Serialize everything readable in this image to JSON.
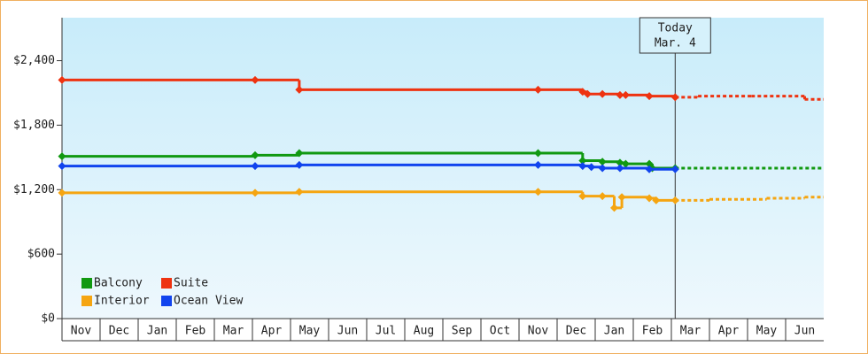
{
  "chart_data": {
    "type": "step-line",
    "categories": [
      "Nov",
      "Dec",
      "Jan",
      "Feb",
      "Mar",
      "Apr",
      "May",
      "Jun",
      "Jul",
      "Aug",
      "Sep",
      "Oct",
      "Nov",
      "Dec",
      "Jan",
      "Feb",
      "Mar",
      "Apr",
      "May",
      "Jun"
    ],
    "xlim": [
      0,
      20
    ],
    "ylim": [
      0,
      2800
    ],
    "yticks": [
      {
        "value": 0,
        "label": "$0"
      },
      {
        "value": 600,
        "label": "$600"
      },
      {
        "value": 1200,
        "label": "$1,200"
      },
      {
        "value": 1800,
        "label": "$1,800"
      },
      {
        "value": 2400,
        "label": "$2,400"
      }
    ],
    "today": {
      "x": 16.1,
      "label": [
        "Today",
        "Mar. 4"
      ]
    },
    "legend": "lower left",
    "series": [
      {
        "name": "Balcony",
        "color": "#119911",
        "x": [
          0,
          5.07,
          6.23,
          12.5,
          13.67,
          14.19,
          14.65,
          14.8,
          15.42,
          15.5,
          16.1,
          20
        ],
        "values": [
          1510,
          1520,
          1540,
          1540,
          1470,
          1460,
          1450,
          1440,
          1440,
          1400,
          1400,
          1400
        ]
      },
      {
        "name": "Suite",
        "color": "#ee3311",
        "x": [
          0,
          5.07,
          6.23,
          12.5,
          13.67,
          13.8,
          14.19,
          14.65,
          14.8,
          15.42,
          16.1,
          16.7,
          18.1,
          19.5,
          20
        ],
        "values": [
          2220,
          2220,
          2130,
          2130,
          2110,
          2090,
          2090,
          2080,
          2080,
          2070,
          2060,
          2070,
          2070,
          2040,
          2040
        ]
      },
      {
        "name": "Interior",
        "color": "#f5a511",
        "x": [
          0,
          5.07,
          6.23,
          12.5,
          13.67,
          14.19,
          14.5,
          14.7,
          15.42,
          15.6,
          16.1,
          17,
          18.5,
          19.5,
          20
        ],
        "values": [
          1170,
          1170,
          1180,
          1180,
          1140,
          1140,
          1030,
          1130,
          1120,
          1100,
          1100,
          1110,
          1120,
          1130,
          1130
        ]
      },
      {
        "name": "Ocean View",
        "color": "#1144ee",
        "x": [
          0,
          5.07,
          6.23,
          12.5,
          13.67,
          13.9,
          14.19,
          14.65,
          15.42,
          16.1
        ],
        "values": [
          1420,
          1420,
          1430,
          1430,
          1420,
          1410,
          1400,
          1400,
          1390,
          1390
        ]
      }
    ]
  }
}
